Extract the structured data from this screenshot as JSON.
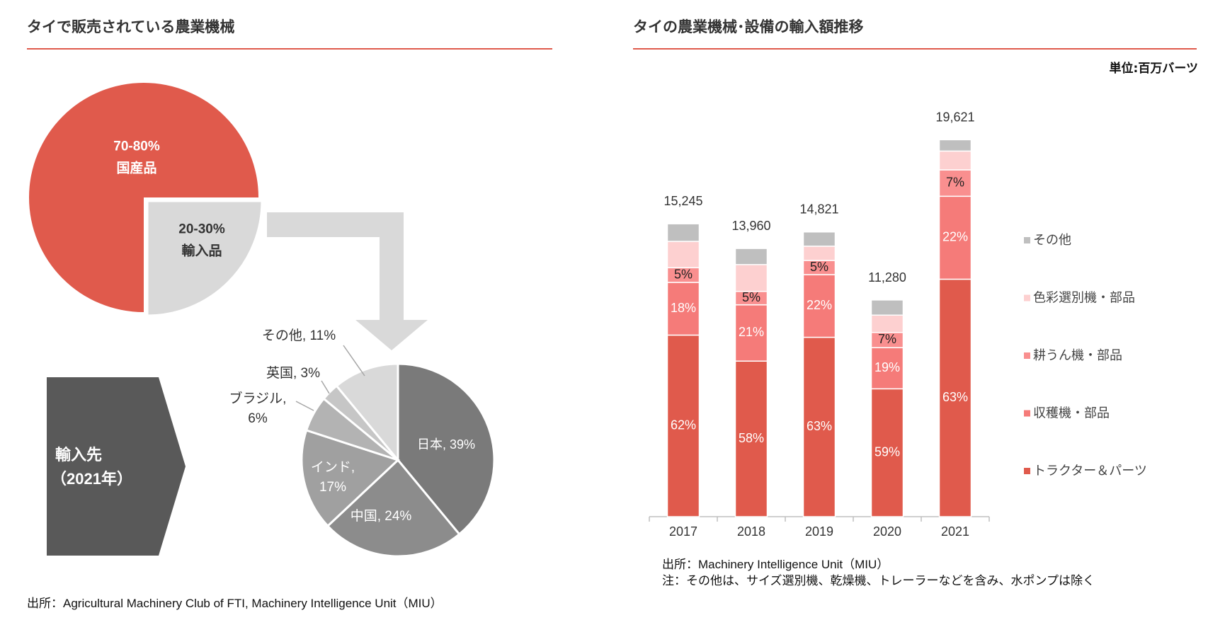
{
  "left": {
    "title": "タイで販売されている農業機械",
    "domestic_label": "70-80%\n国産品",
    "import_label": "20-30%\n輸入品",
    "arrow_box_label": "輸入先\n（2021年）",
    "source": "出所：Agricultural Machinery Club of FTI, Machinery Intelligence Unit（MIU）"
  },
  "right": {
    "title": "タイの農業機械･設備の輸入額推移",
    "unit": "単位:百万バーツ",
    "source_line1": "出所：Machinery Intelligence Unit（MIU）",
    "source_line2": "注：その他は、サイズ選別機、乾燥機、トレーラーなどを含み、水ポンプは除く"
  },
  "colors": {
    "accent": "#e05a4c",
    "tractor": "#e05a4c",
    "harvester": "#f57b79",
    "tiller": "#f98f8f",
    "sorter": "#fdd0d0",
    "other": "#bfbfbf",
    "import_slice": "#d9d9d9",
    "arrow_box": "#595959"
  },
  "chart_data": [
    {
      "type": "pie",
      "title": "",
      "slices": [
        {
          "name": "国産品",
          "value": 75,
          "label": "70-80%\n国産品"
        },
        {
          "name": "輸入品",
          "value": 25,
          "label": "20-30%\n輸入品",
          "exploded": true
        }
      ]
    },
    {
      "type": "pie",
      "title": "輸入先（2021年）",
      "slices": [
        {
          "name": "日本",
          "value": 39,
          "label": "日本, 39%",
          "color": "#7a7a7a"
        },
        {
          "name": "中国",
          "value": 24,
          "label": "中国, 24%",
          "color": "#8c8c8c"
        },
        {
          "name": "インド",
          "value": 17,
          "label": "インド,\n17%",
          "color": "#a0a0a0"
        },
        {
          "name": "ブラジル",
          "value": 6,
          "label": "ブラジル,\n6%",
          "color": "#b3b3b3"
        },
        {
          "name": "英国",
          "value": 3,
          "label": "英国, 3%",
          "color": "#c6c6c6"
        },
        {
          "name": "その他",
          "value": 11,
          "label": "その他, 11%",
          "color": "#d9d9d9"
        }
      ]
    },
    {
      "type": "bar",
      "stacked": true,
      "title": "タイの農業機械･設備の輸入額推移",
      "ylabel": "単位:百万バーツ",
      "categories": [
        "2017",
        "2018",
        "2019",
        "2020",
        "2021"
      ],
      "totals": [
        15245,
        13960,
        14821,
        11280,
        19621
      ],
      "total_labels": [
        "15,245",
        "13,960",
        "14,821",
        "11,280",
        "19,621"
      ],
      "series": [
        {
          "name": "トラクター＆パーツ",
          "color": "#e05a4c",
          "percent": [
            62,
            58,
            63,
            59,
            63
          ]
        },
        {
          "name": "収穫機・部品",
          "color": "#f57b79",
          "percent": [
            18,
            21,
            22,
            19,
            22
          ]
        },
        {
          "name": "耕うん機・部品",
          "color": "#f98f8f",
          "percent": [
            5,
            5,
            5,
            7,
            7
          ]
        },
        {
          "name": "色彩選別機・部品",
          "color": "#fdd0d0",
          "percent": [
            9,
            10,
            5,
            8,
            5
          ]
        },
        {
          "name": "その他",
          "color": "#bfbfbf",
          "percent": [
            6,
            6,
            5,
            7,
            3
          ]
        }
      ],
      "legend_order": [
        "その他",
        "色彩選別機・部品",
        "耕うん機・部品",
        "収穫機・部品",
        "トラクター＆パーツ"
      ],
      "legend_position": "right",
      "ylim": [
        0,
        21000
      ],
      "grid": false
    }
  ]
}
